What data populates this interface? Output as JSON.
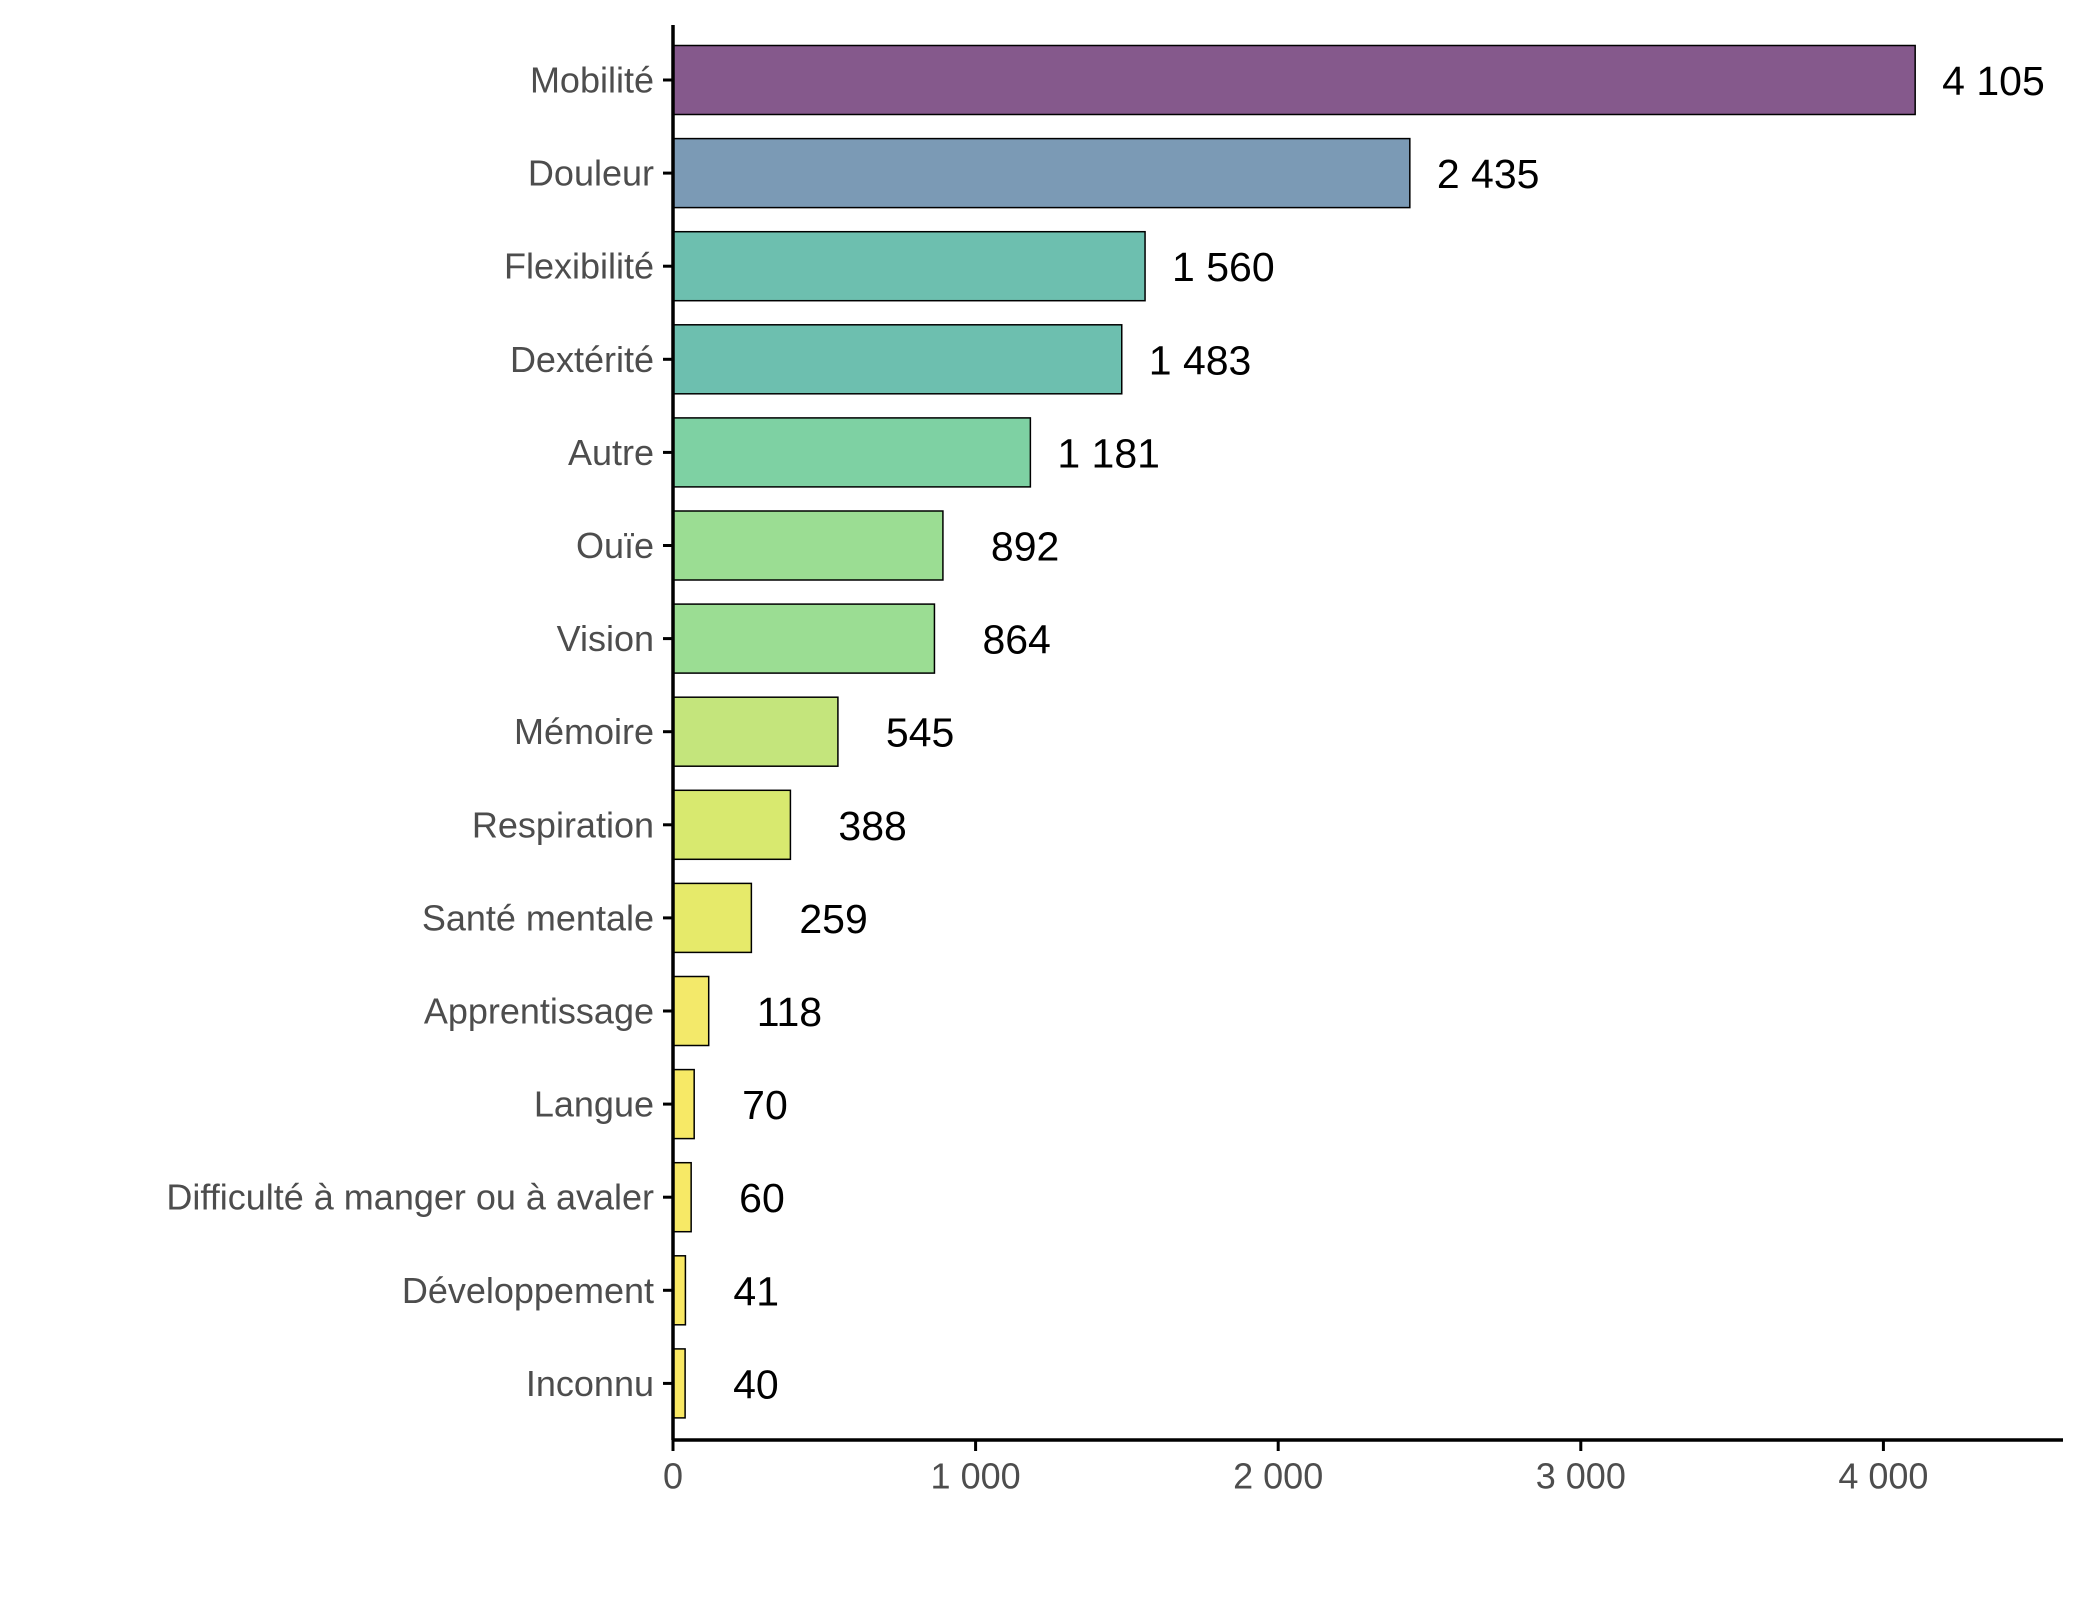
{
  "chart_data": {
    "type": "bar",
    "orientation": "horizontal",
    "title": "",
    "xlabel": "",
    "ylabel": "",
    "xlim": [
      0,
      4600
    ],
    "grid": false,
    "legend": "none",
    "categories": [
      "Mobilité",
      "Douleur",
      "Flexibilité",
      "Dextérité",
      "Autre",
      "Ouïe",
      "Vision",
      "Mémoire",
      "Respiration",
      "Santé mentale",
      "Apprentissage",
      "Langue",
      "Difficulté à manger ou à avaler",
      "Développement",
      "Inconnu"
    ],
    "values": [
      4105,
      2435,
      1560,
      1483,
      1181,
      892,
      864,
      545,
      388,
      259,
      118,
      70,
      60,
      41,
      40
    ],
    "value_labels": [
      "4 105",
      "2 435",
      "1 560",
      "1 483",
      "1 181",
      "892",
      "864",
      "545",
      "388",
      "259",
      "118",
      "70",
      "60",
      "41",
      "40"
    ],
    "colors": [
      "#85598c",
      "#7b9ab5",
      "#6dbfaf",
      "#6dbfaf",
      "#7ed1a3",
      "#9bdd93",
      "#9bdd93",
      "#c4e57c",
      "#d8e96f",
      "#e6ea6a",
      "#f3e96a",
      "#f7e966",
      "#f7e966",
      "#f9e864",
      "#f9e864"
    ],
    "x_ticks": [
      0,
      1000,
      2000,
      3000,
      4000
    ],
    "x_tick_labels": [
      "0",
      "1 000",
      "2 000",
      "3 000",
      "4 000"
    ]
  }
}
